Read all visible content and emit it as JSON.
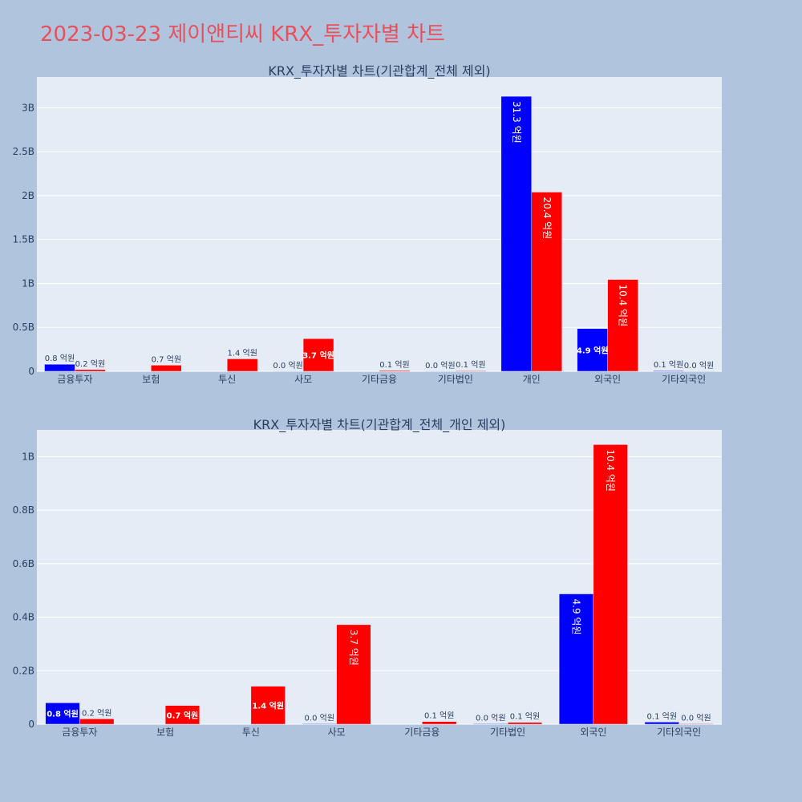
{
  "page_title": "2023-03-23 제이앤티씨 KRX_투자자별 차트",
  "colors": {
    "buy": "#0000ff",
    "sell": "#ff0000",
    "plot_bg": "#e5ecf6",
    "page_bg": "#b0c4de",
    "title": "#e8505b"
  },
  "chart_data": [
    {
      "type": "bar",
      "title": "KRX_투자자별 차트(기관합계_전체 제외)",
      "categories": [
        "금융투자",
        "보험",
        "투신",
        "사모",
        "기타금융",
        "기타법인",
        "개인",
        "외국인",
        "기타외국인"
      ],
      "series": [
        {
          "color": "#0000ff",
          "values": [
            0.08,
            0,
            0,
            0.002,
            0,
            0.002,
            3.13,
            0.487,
            0.008
          ],
          "labels": [
            "0.8 억원",
            "",
            "",
            "0.0 억원",
            "",
            "0.0 억원",
            "31.3 억원",
            "4.9 억원",
            "0.1 억원"
          ]
        },
        {
          "color": "#ff0000",
          "values": [
            0.02,
            0.07,
            0.142,
            0.372,
            0.01,
            0.007,
            2.04,
            1.045,
            0.002
          ],
          "labels": [
            "0.2 억원",
            "0.7 억원",
            "1.4 억원",
            "3.7 억원",
            "0.1 억원",
            "0.1 억원",
            "20.4 억원",
            "10.4 억원",
            "0.0 억원"
          ]
        }
      ],
      "y_unit": "B",
      "ylim": [
        0,
        3.35
      ],
      "yticks": [
        0,
        0.5,
        1,
        1.5,
        2,
        2.5,
        3
      ],
      "ytick_labels": [
        "0",
        "0.5B",
        "1B",
        "1.5B",
        "2B",
        "2.5B",
        "3B"
      ],
      "grid": true
    },
    {
      "type": "bar",
      "title": "KRX_투자자별 차트(기관합계_전체_개인 제외)",
      "categories": [
        "금융투자",
        "보험",
        "투신",
        "사모",
        "기타금융",
        "기타법인",
        "외국인",
        "기타외국인"
      ],
      "series": [
        {
          "color": "#0000ff",
          "values": [
            0.08,
            0,
            0,
            0.002,
            0,
            0.002,
            0.487,
            0.008
          ],
          "labels": [
            "0.8 억원",
            "",
            "",
            "0.0 억원",
            "",
            "0.0 억원",
            "4.9 억원",
            "0.1 억원"
          ]
        },
        {
          "color": "#ff0000",
          "values": [
            0.02,
            0.07,
            0.142,
            0.372,
            0.01,
            0.007,
            1.045,
            0.002
          ],
          "labels": [
            "0.2 억원",
            "0.7 억원",
            "1.4 억원",
            "3.7 억원",
            "0.1 억원",
            "0.1 억원",
            "10.4 억원",
            "0.0 억원"
          ]
        }
      ],
      "y_unit": "B",
      "ylim": [
        0,
        1.1
      ],
      "yticks": [
        0,
        0.2,
        0.4,
        0.6,
        0.8,
        1
      ],
      "ytick_labels": [
        "0",
        "0.2B",
        "0.4B",
        "0.6B",
        "0.8B",
        "1B"
      ],
      "grid": true
    }
  ]
}
